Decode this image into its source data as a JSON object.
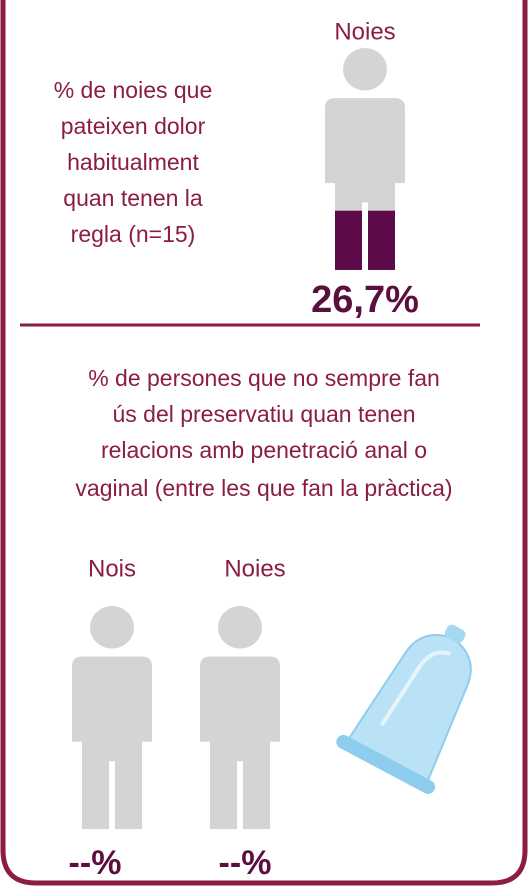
{
  "top": {
    "label": "Noies",
    "description_lines": [
      "% de noies que",
      "pateixen dolor",
      "habitualment",
      "quan tenen la",
      "regla (n=15)"
    ],
    "value": 26.7,
    "value_label": "26,7%"
  },
  "bottom": {
    "description_lines": [
      "% de persones que no sempre fan",
      "ús del preservatiu quan tenen",
      "relacions amb penetració anal o",
      "vaginal (entre les que fan la pràctica)"
    ],
    "groups": [
      {
        "label": "Nois",
        "value_label": "--%"
      },
      {
        "label": "Noies",
        "value_label": "--%"
      }
    ]
  }
}
